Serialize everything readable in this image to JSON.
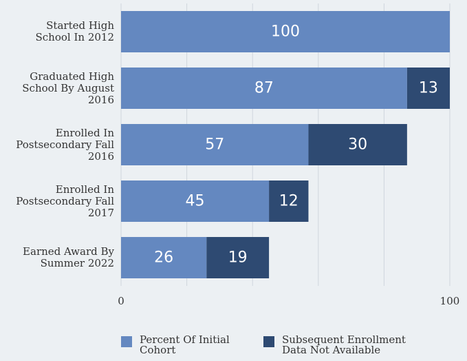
{
  "chart_data": {
    "type": "stacked_barh",
    "categories": [
      "Started High School In 2012",
      "Graduated High School By August 2016",
      "Enrolled In Postsecondary Fall 2016",
      "Enrolled In Postsecondary Fall 2017",
      "Earned Award By Summer 2022"
    ],
    "series": [
      {
        "name": "Percent Of Initial Cohort",
        "color": "#6488c0",
        "values": [
          100,
          87,
          57,
          45,
          26
        ]
      },
      {
        "name": "Subsequent Enrollment Data Not Available",
        "color": "#2e4a72",
        "values": [
          null,
          13,
          30,
          12,
          19
        ]
      }
    ],
    "xlim": [
      0,
      100
    ],
    "xticks": [
      0,
      100
    ],
    "xgrid": [
      0,
      20,
      40,
      60,
      80,
      100
    ],
    "legend": "bottom"
  }
}
